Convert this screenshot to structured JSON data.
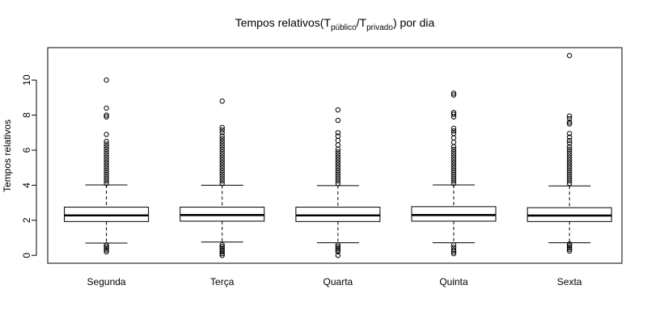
{
  "chart_data": {
    "type": "boxplot",
    "title": {
      "prefix": "Tempos relativos(T",
      "sub1": "público",
      "mid": "/T",
      "sub2": "privado",
      "suffix": ") por dia"
    },
    "xlabel": "",
    "ylabel": "Tempos relativos",
    "ylim": [
      -0.45,
      11.85
    ],
    "yticks": [
      "0",
      "2",
      "4",
      "6",
      "8",
      "10"
    ],
    "categories": [
      "Segunda",
      "Terça",
      "Quarta",
      "Quinta",
      "Sexta"
    ],
    "boxes": [
      {
        "category": "Segunda",
        "whisker_low": 0.7,
        "q1": 1.93,
        "median": 2.28,
        "q3": 2.75,
        "whisker_high": 4.02,
        "outliers_high": [
          4.1,
          4.25,
          4.4,
          4.55,
          4.7,
          4.85,
          5.0,
          5.15,
          5.3,
          5.45,
          5.6,
          5.75,
          5.9,
          6.05,
          6.2,
          6.35,
          6.5,
          6.9,
          7.9,
          8.0,
          8.4,
          10.0
        ],
        "outliers_low": [
          0.2,
          0.3,
          0.4,
          0.5,
          0.6
        ]
      },
      {
        "category": "Terça",
        "whisker_low": 0.76,
        "q1": 1.95,
        "median": 2.3,
        "q3": 2.75,
        "whisker_high": 4.0,
        "outliers_high": [
          4.1,
          4.25,
          4.4,
          4.55,
          4.7,
          4.85,
          5.0,
          5.15,
          5.3,
          5.45,
          5.6,
          5.75,
          5.9,
          6.05,
          6.2,
          6.35,
          6.5,
          6.65,
          6.8,
          7.0,
          7.15,
          7.3,
          8.8
        ],
        "outliers_low": [
          0.0,
          0.1,
          0.2,
          0.3,
          0.4,
          0.5,
          0.6
        ]
      },
      {
        "category": "Quarta",
        "whisker_low": 0.72,
        "q1": 1.93,
        "median": 2.28,
        "q3": 2.75,
        "whisker_high": 3.98,
        "outliers_high": [
          4.1,
          4.25,
          4.4,
          4.55,
          4.7,
          4.85,
          5.0,
          5.15,
          5.3,
          5.45,
          5.6,
          5.75,
          5.9,
          6.05,
          6.3,
          6.55,
          6.8,
          7.0,
          7.7,
          8.3
        ],
        "outliers_low": [
          0.0,
          0.2,
          0.3,
          0.4,
          0.5,
          0.6
        ]
      },
      {
        "category": "Quinta",
        "whisker_low": 0.72,
        "q1": 1.95,
        "median": 2.3,
        "q3": 2.78,
        "whisker_high": 4.02,
        "outliers_high": [
          4.1,
          4.25,
          4.4,
          4.55,
          4.7,
          4.85,
          5.0,
          5.15,
          5.3,
          5.45,
          5.6,
          5.75,
          5.9,
          6.05,
          6.2,
          6.45,
          6.7,
          6.95,
          7.1,
          7.25,
          7.9,
          8.05,
          8.15,
          9.15,
          9.25
        ],
        "outliers_low": [
          0.1,
          0.2,
          0.3,
          0.45,
          0.6
        ]
      },
      {
        "category": "Sexta",
        "whisker_low": 0.72,
        "q1": 1.93,
        "median": 2.27,
        "q3": 2.72,
        "whisker_high": 3.96,
        "outliers_high": [
          4.1,
          4.25,
          4.4,
          4.55,
          4.7,
          4.85,
          5.0,
          5.15,
          5.3,
          5.45,
          5.6,
          5.75,
          5.9,
          6.05,
          6.2,
          6.4,
          6.55,
          6.75,
          6.95,
          7.5,
          7.6,
          7.8,
          7.95,
          11.4
        ],
        "outliers_low": [
          0.25,
          0.35,
          0.45,
          0.55,
          0.65
        ]
      }
    ],
    "grid": false,
    "legend": "none",
    "colors": {
      "ink": "#000000",
      "box_fill": "#ffffff"
    }
  }
}
